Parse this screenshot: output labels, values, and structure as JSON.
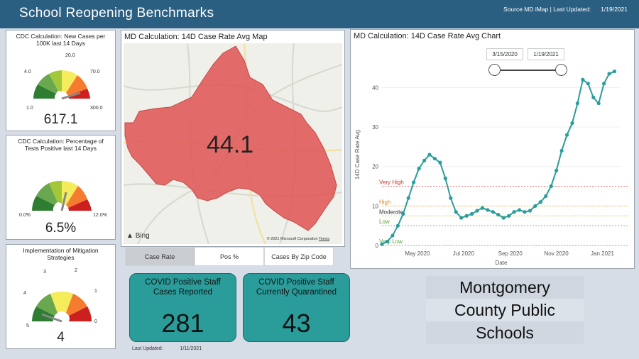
{
  "header": {
    "title": "School Reopening Benchmarks",
    "source": "Source MD iMap | Last Updated:",
    "updated": "1/19/2021"
  },
  "gauges": [
    {
      "title": "CDC Calculation: New Cases per 100K last 14 Days",
      "value": "617.1",
      "labels": [
        "1.0",
        "4.0",
        "20.0",
        "70.0",
        "300.0"
      ]
    },
    {
      "title": "CDC Calculation: Percentage of Tests Positive last 14 Days",
      "value": "6.5%",
      "labels": [
        "0.0%",
        "12.0%"
      ]
    },
    {
      "title": "Implementation of Mitigation Strategies",
      "value": "4",
      "labels": [
        "5",
        "4",
        "3",
        "2",
        "1",
        "0"
      ]
    }
  ],
  "map": {
    "title": "MD Calculation: 14D Case Rate Avg Map",
    "value": "44.1",
    "bing": "Bing",
    "copyright": "© 2021 Microsoft Corporation",
    "terms": "Terms",
    "tabs": [
      "Case Rate",
      "Pos %",
      "Cases By Zip Code"
    ]
  },
  "stats": [
    {
      "label": "COVID Positive Staff Cases Reported",
      "value": "281"
    },
    {
      "label": "COVID Positive Staff Currently Quarantined",
      "value": "43"
    }
  ],
  "last_updated": {
    "label": "Last Updated:",
    "date": "1/11/2021"
  },
  "chart_panel": {
    "title": "MD Calculation: 14D Case Rate Avg Chart",
    "slider_start": "3/15/2020",
    "slider_end": "1/19/2021"
  },
  "org": {
    "line1": "Montgomery",
    "line2": "County Public",
    "line3": "Schools"
  },
  "colors": {
    "header": "#2b5f82",
    "teal": "#2a9d9b",
    "map_fill": "#e05b5b"
  },
  "chart_data": {
    "type": "scatter",
    "xlabel": "Date",
    "ylabel": "14D Case Rate Avg",
    "xticks": [
      "May 2020",
      "Jul 2020",
      "Sep 2020",
      "Nov 2020",
      "Jan 2021"
    ],
    "yticks": [
      0,
      10,
      20,
      30,
      40
    ],
    "ylim": [
      0,
      46
    ],
    "thresholds": [
      {
        "label": "Very High",
        "y": 15,
        "color": "#e07b7b"
      },
      {
        "label": "High",
        "y": 10,
        "color": "#f0c070"
      },
      {
        "label": "Moderate",
        "y": 7.5,
        "color": "#d9c96a"
      },
      {
        "label": "Low",
        "y": 5,
        "color": "#7fbf7f"
      },
      {
        "label": "Very Low",
        "y": 0,
        "color": "#7fbf7f"
      }
    ],
    "series": [
      {
        "x": [
          "2020-03-15",
          "2020-03-22",
          "2020-03-29",
          "2020-04-05",
          "2020-04-12",
          "2020-04-19",
          "2020-04-26",
          "2020-05-03",
          "2020-05-10",
          "2020-05-17",
          "2020-05-24",
          "2020-05-31",
          "2020-06-07",
          "2020-06-14",
          "2020-06-21",
          "2020-06-28",
          "2020-07-05",
          "2020-07-12",
          "2020-07-19",
          "2020-07-26",
          "2020-08-02",
          "2020-08-09",
          "2020-08-16",
          "2020-08-23",
          "2020-08-30",
          "2020-09-06",
          "2020-09-13",
          "2020-09-20",
          "2020-09-27",
          "2020-10-04",
          "2020-10-11",
          "2020-10-18",
          "2020-10-25",
          "2020-11-01",
          "2020-11-08",
          "2020-11-15",
          "2020-11-22",
          "2020-11-29",
          "2020-12-06",
          "2020-12-13",
          "2020-12-20",
          "2020-12-27",
          "2021-01-03",
          "2021-01-10",
          "2021-01-17"
        ],
        "y": [
          0.3,
          1.0,
          2.5,
          5.0,
          8.0,
          12.0,
          16.0,
          19.5,
          21.5,
          23.0,
          22.0,
          21.0,
          17.0,
          12.0,
          8.5,
          7.0,
          7.5,
          8.0,
          8.8,
          9.5,
          9.0,
          8.5,
          7.8,
          7.0,
          7.5,
          8.5,
          9.0,
          8.5,
          8.8,
          10.0,
          11.0,
          12.5,
          15.0,
          19.0,
          24.0,
          28.0,
          31.0,
          36.0,
          42.0,
          41.0,
          37.5,
          36.0,
          41.0,
          43.5,
          44.1
        ]
      }
    ]
  }
}
